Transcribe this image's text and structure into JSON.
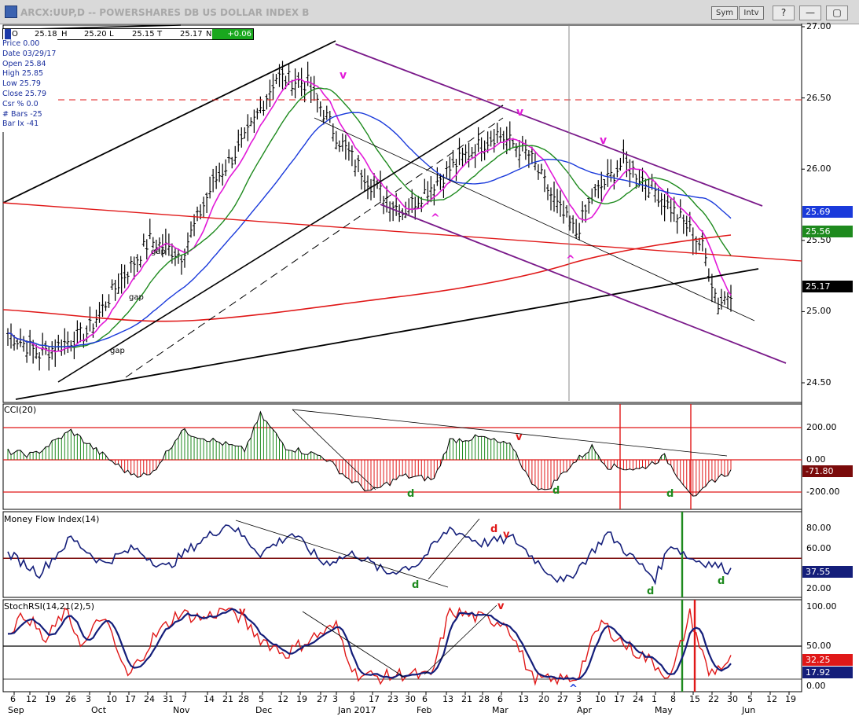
{
  "window": {
    "title": "ARCX:UUP,D -- POWERSHARES DB US DOLLAR INDEX B",
    "buttons": {
      "sym": "Sym",
      "intv": "Intv",
      "help": "?",
      "minimize": "—",
      "restore": "▢",
      "close": "✕"
    }
  },
  "databox": [
    {
      "k": "O",
      "v": "25.18"
    },
    {
      "k": "H",
      "v": "25.20"
    },
    {
      "k": "L",
      "v": "25.15"
    },
    {
      "k": "T",
      "v": "25.17"
    },
    {
      "k": "N",
      "v": "+0.06"
    }
  ],
  "info_panel": [
    "Price  0.00",
    "Date  03/29/17",
    "Open  25.84",
    "High  25.85",
    "Low  25.79",
    "Close  25.79",
    "Csr %  0.0",
    "# Bars -25",
    "Bar Ix  -41"
  ],
  "panes": {
    "price": {
      "y_ticks": [
        "27.00",
        "26.50",
        "26.00",
        "25.50",
        "25.00",
        "24.50"
      ],
      "flags": [
        {
          "text": "25.69",
          "color": "#1a3adb"
        },
        {
          "text": "25.56",
          "color": "#1e8a1e"
        },
        {
          "text": "25.17",
          "color": "#000000"
        }
      ]
    },
    "cci": {
      "title": "CCI(20)",
      "y_ticks": [
        "200.00",
        "0.00",
        "-200.00"
      ],
      "flag": {
        "text": "-71.80",
        "color": "#7a0a0a"
      }
    },
    "mfi": {
      "title": "Money Flow Index(14)",
      "y_ticks": [
        "80.00",
        "60.00",
        "40.00",
        "20.00"
      ],
      "flag": {
        "text": "37.55",
        "color": "#141e7a"
      }
    },
    "stochrsi": {
      "title": "StochRSI(14,21(2),5)",
      "y_ticks": [
        "100.00",
        "50.00",
        "0.00"
      ],
      "flags": [
        {
          "text": "32.25",
          "color": "#e01818"
        },
        {
          "text": "17.92",
          "color": "#141e7a"
        }
      ]
    }
  },
  "annotations": {
    "price_gap": [
      "gap",
      "gap",
      "gap"
    ],
    "price_marks": [
      "v",
      "v",
      "v",
      "^",
      "^"
    ],
    "cci_marks": [
      "d",
      "d",
      "d",
      "v"
    ],
    "mfi_marks": [
      "d",
      "d",
      "d",
      "d",
      "v"
    ],
    "stoch_marks": [
      "v",
      "v",
      "^"
    ]
  },
  "x_axis": {
    "days": [
      "6",
      "12",
      "19",
      "26",
      "3",
      "10",
      "17",
      "24",
      "31",
      "7",
      "14",
      "21",
      "28",
      "5",
      "12",
      "19",
      "27",
      "3",
      "9",
      "17",
      "23",
      "30",
      "6",
      "13",
      "21",
      "28",
      "6",
      "13",
      "20",
      "27",
      "3",
      "10",
      "17",
      "24",
      "1",
      "8",
      "15",
      "22",
      "30",
      "5",
      "12",
      "19"
    ],
    "months": [
      "Sep",
      "Oct",
      "Nov",
      "Dec",
      "Jan 2017",
      "Feb",
      "Mar",
      "Apr",
      "May",
      "Jun"
    ]
  },
  "colors": {
    "price_bars": "#000000",
    "ma_fast": "#e21ad8",
    "ma_mid": "#1e8a1e",
    "ma_slow": "#1a3adb",
    "ma_long": "#e01818",
    "channel": "#7a1a8a"
  }
}
